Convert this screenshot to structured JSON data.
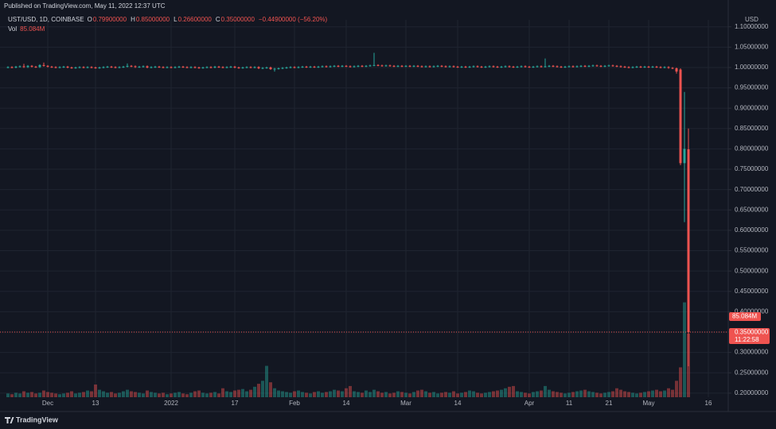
{
  "chart_data": {
    "type": "candlestick",
    "header": "Published on TradingView.com, May 11, 2022 12:37 UTC",
    "legend": {
      "symbol": "UST/USD, 1D, COINBASE",
      "fields": [
        {
          "key": "O",
          "value": "0.79900000"
        },
        {
          "key": "H",
          "value": "0.85000000"
        },
        {
          "key": "L",
          "value": "0.26600000"
        },
        {
          "key": "C",
          "value": "0.35000000"
        }
      ],
      "change": "−0.44900000 (−56.20%)"
    },
    "currency": "USD",
    "footer": "TradingView",
    "last_price_label": "0.35000000",
    "countdown": "11:22:58",
    "up_color": "#26a69a",
    "down_color": "#ef5350",
    "grid": true,
    "x": [
      -10,
      -9,
      -8,
      -7,
      -6,
      -5,
      -4,
      -3,
      -2,
      -1,
      0,
      1,
      2,
      3,
      4,
      5,
      6,
      7,
      8,
      9,
      10,
      11,
      12,
      13,
      14,
      15,
      16,
      17,
      18,
      19,
      20,
      21,
      22,
      23,
      24,
      25,
      26,
      27,
      28,
      29,
      30,
      31,
      32,
      33,
      34,
      35,
      36,
      37,
      38,
      39,
      40,
      41,
      42,
      43,
      44,
      45,
      46,
      47,
      48,
      49,
      50,
      51,
      52,
      53,
      54,
      55,
      56,
      57,
      58,
      59,
      60,
      61,
      62,
      63,
      64,
      65,
      66,
      67,
      68,
      69,
      70,
      71,
      72,
      73,
      74,
      75,
      76,
      77,
      78,
      79,
      80,
      81,
      82,
      83,
      84,
      85,
      86,
      87,
      88,
      89,
      90,
      91,
      92,
      93,
      94,
      95,
      96,
      97,
      98,
      99,
      100,
      101,
      102,
      103,
      104,
      105,
      106,
      107,
      108,
      109,
      110,
      111,
      112,
      113,
      114,
      115,
      116,
      117,
      118,
      119,
      120,
      121,
      122,
      123,
      124,
      125,
      126,
      127,
      128,
      129,
      130,
      131,
      132,
      133,
      134,
      135,
      136,
      137,
      138,
      139,
      140,
      141,
      142,
      143,
      144,
      145,
      146,
      147,
      148,
      149,
      150,
      151,
      152,
      153,
      154,
      155,
      156,
      157,
      158,
      159,
      160,
      161
    ],
    "open": [
      1.0,
      1.001,
      1.0,
      1.002,
      1.003,
      1.001,
      1.004,
      1.002,
      1.001,
      1.006,
      1.004,
      1.002,
      1.001,
      1.0,
      1.001,
      1.002,
      1.0,
      0.999,
      1.0,
      1.001,
      1.0,
      1.001,
      1.0,
      0.999,
      1.0,
      1.001,
      1.002,
      1.001,
      1.0,
      1.001,
      1.002,
      1.004,
      1.003,
      1.001,
      1.002,
      1.003,
      1.0,
      1.001,
      1.002,
      1.001,
      1.0,
      1.001,
      1.0,
      1.001,
      1.002,
      1.001,
      1.0,
      1.001,
      1.0,
      0.999,
      1.0,
      1.001,
      1.0,
      1.002,
      1.001,
      1.0,
      1.001,
      1.002,
      1.0,
      0.999,
      1.0,
      1.001,
      1.0,
      1.001,
      0.998,
      0.999,
      1.0,
      0.996,
      0.997,
      0.998,
      0.999,
      1.0,
      1.001,
      1.0,
      1.001,
      1.002,
      1.001,
      1.002,
      1.001,
      1.002,
      1.003,
      1.002,
      1.003,
      1.004,
      1.003,
      1.004,
      1.003,
      1.002,
      1.003,
      1.004,
      1.003,
      1.004,
      1.005,
      1.006,
      1.005,
      1.004,
      1.005,
      1.004,
      1.003,
      1.004,
      1.003,
      1.004,
      1.003,
      1.004,
      1.003,
      1.002,
      1.003,
      1.002,
      1.003,
      1.004,
      1.003,
      1.002,
      1.003,
      1.002,
      1.001,
      1.002,
      1.001,
      1.002,
      1.003,
      1.002,
      1.001,
      1.002,
      1.003,
      1.002,
      1.001,
      1.002,
      1.003,
      1.002,
      1.001,
      1.002,
      1.003,
      1.002,
      1.001,
      1.002,
      1.003,
      1.002,
      1.003,
      1.004,
      1.003,
      1.002,
      1.001,
      1.002,
      1.003,
      1.002,
      1.003,
      1.004,
      1.003,
      1.004,
      1.005,
      1.004,
      1.003,
      1.004,
      1.005,
      1.004,
      1.003,
      1.002,
      1.001,
      1.0,
      1.001,
      1.002,
      1.001,
      1.002,
      1.001,
      1.002,
      1.001,
      1.0,
      1.001,
      0.999,
      0.998,
      0.995,
      0.765,
      0.799
    ],
    "high": [
      1.003,
      1.003,
      1.004,
      1.005,
      1.009,
      1.006,
      1.006,
      1.004,
      1.008,
      1.012,
      1.006,
      1.004,
      1.003,
      1.003,
      1.004,
      1.004,
      1.002,
      1.002,
      1.003,
      1.003,
      1.003,
      1.003,
      1.002,
      1.002,
      1.003,
      1.004,
      1.004,
      1.003,
      1.003,
      1.004,
      1.01,
      1.006,
      1.005,
      1.004,
      1.005,
      1.005,
      1.003,
      1.004,
      1.004,
      1.003,
      1.003,
      1.003,
      1.003,
      1.004,
      1.004,
      1.003,
      1.003,
      1.003,
      1.002,
      1.002,
      1.003,
      1.003,
      1.004,
      1.004,
      1.003,
      1.003,
      1.004,
      1.004,
      1.002,
      1.002,
      1.003,
      1.003,
      1.003,
      1.003,
      1.001,
      1.002,
      1.002,
      0.999,
      1.0,
      1.001,
      1.002,
      1.003,
      1.003,
      1.003,
      1.004,
      1.004,
      1.004,
      1.004,
      1.004,
      1.005,
      1.005,
      1.005,
      1.006,
      1.006,
      1.006,
      1.006,
      1.005,
      1.005,
      1.006,
      1.006,
      1.006,
      1.007,
      1.036,
      1.008,
      1.007,
      1.007,
      1.007,
      1.006,
      1.006,
      1.006,
      1.006,
      1.006,
      1.006,
      1.006,
      1.005,
      1.005,
      1.005,
      1.005,
      1.006,
      1.006,
      1.005,
      1.005,
      1.005,
      1.004,
      1.004,
      1.004,
      1.004,
      1.005,
      1.005,
      1.004,
      1.004,
      1.005,
      1.005,
      1.004,
      1.004,
      1.005,
      1.005,
      1.004,
      1.004,
      1.005,
      1.005,
      1.004,
      1.004,
      1.005,
      1.005,
      1.022,
      1.006,
      1.006,
      1.005,
      1.004,
      1.004,
      1.005,
      1.005,
      1.005,
      1.006,
      1.006,
      1.006,
      1.007,
      1.007,
      1.006,
      1.006,
      1.007,
      1.007,
      1.006,
      1.005,
      1.004,
      1.003,
      1.003,
      1.004,
      1.004,
      1.004,
      1.004,
      1.004,
      1.004,
      1.003,
      1.003,
      1.003,
      1.001,
      1.0,
      0.998,
      0.94,
      0.85
    ],
    "low": [
      0.998,
      0.998,
      0.998,
      1.0,
      0.999,
      0.999,
      1.0,
      0.999,
      0.999,
      1.002,
      1.0,
      0.999,
      0.998,
      0.998,
      0.999,
      0.998,
      0.997,
      0.997,
      0.998,
      0.998,
      0.998,
      0.998,
      0.997,
      0.997,
      0.998,
      0.999,
      0.999,
      0.998,
      0.998,
      0.999,
      1.0,
      1.001,
      0.999,
      0.999,
      1.0,
      0.998,
      0.998,
      0.999,
      0.999,
      0.998,
      0.998,
      0.998,
      0.998,
      0.999,
      0.999,
      0.998,
      0.998,
      0.998,
      0.997,
      0.997,
      0.998,
      0.998,
      0.998,
      0.999,
      0.998,
      0.998,
      0.999,
      0.998,
      0.997,
      0.997,
      0.998,
      0.998,
      0.998,
      0.996,
      0.996,
      0.997,
      0.994,
      0.99,
      0.995,
      0.996,
      0.997,
      0.998,
      0.998,
      0.998,
      0.999,
      0.999,
      0.999,
      0.999,
      0.999,
      1.0,
      1.0,
      1.0,
      1.001,
      1.001,
      1.001,
      1.001,
      1.0,
      1.0,
      1.001,
      1.001,
      1.001,
      1.002,
      1.003,
      1.003,
      1.002,
      1.002,
      1.002,
      1.001,
      1.001,
      1.001,
      1.001,
      1.001,
      1.001,
      1.001,
      1.0,
      1.0,
      1.0,
      1.0,
      1.001,
      1.001,
      1.0,
      1.0,
      1.0,
      0.999,
      0.999,
      0.999,
      0.999,
      1.0,
      1.0,
      0.999,
      0.999,
      1.0,
      1.0,
      0.999,
      0.999,
      1.0,
      1.0,
      0.999,
      0.999,
      1.0,
      1.0,
      0.999,
      0.999,
      1.0,
      1.0,
      1.0,
      1.001,
      1.001,
      1.0,
      0.999,
      0.999,
      1.0,
      1.0,
      1.0,
      1.001,
      1.001,
      1.001,
      1.002,
      1.002,
      1.001,
      1.001,
      1.002,
      1.002,
      1.001,
      1.0,
      0.999,
      0.998,
      0.998,
      0.999,
      0.999,
      0.999,
      0.999,
      0.999,
      0.999,
      0.998,
      0.998,
      0.997,
      0.996,
      0.985,
      0.76,
      0.62,
      0.266
    ],
    "close": [
      1.001,
      1.0,
      1.002,
      1.003,
      1.001,
      1.004,
      1.002,
      1.001,
      1.006,
      1.004,
      1.002,
      1.001,
      1.0,
      1.001,
      1.002,
      1.0,
      0.999,
      1.0,
      1.001,
      1.0,
      1.001,
      1.0,
      0.999,
      1.0,
      1.001,
      1.002,
      1.001,
      1.0,
      1.001,
      1.002,
      1.004,
      1.003,
      1.001,
      1.002,
      1.003,
      1.0,
      1.001,
      1.002,
      1.001,
      1.0,
      1.001,
      1.0,
      1.001,
      1.002,
      1.001,
      1.0,
      1.001,
      1.0,
      0.999,
      1.0,
      1.001,
      1.0,
      1.002,
      1.001,
      1.0,
      1.001,
      1.002,
      1.0,
      0.999,
      1.0,
      1.001,
      1.0,
      1.001,
      0.998,
      0.999,
      1.0,
      0.996,
      0.997,
      0.998,
      0.999,
      1.0,
      1.001,
      1.0,
      1.001,
      1.002,
      1.001,
      1.002,
      1.001,
      1.002,
      1.003,
      1.002,
      1.003,
      1.004,
      1.003,
      1.004,
      1.003,
      1.002,
      1.003,
      1.004,
      1.003,
      1.004,
      1.005,
      1.006,
      1.005,
      1.004,
      1.005,
      1.004,
      1.003,
      1.004,
      1.003,
      1.004,
      1.003,
      1.004,
      1.003,
      1.002,
      1.003,
      1.002,
      1.003,
      1.004,
      1.003,
      1.002,
      1.003,
      1.002,
      1.001,
      1.002,
      1.001,
      1.002,
      1.003,
      1.002,
      1.001,
      1.002,
      1.003,
      1.002,
      1.001,
      1.002,
      1.003,
      1.002,
      1.001,
      1.002,
      1.003,
      1.002,
      1.001,
      1.002,
      1.003,
      1.002,
      1.003,
      1.004,
      1.003,
      1.002,
      1.001,
      1.002,
      1.003,
      1.002,
      1.003,
      1.004,
      1.003,
      1.004,
      1.005,
      1.004,
      1.003,
      1.004,
      1.005,
      1.004,
      1.003,
      1.002,
      1.001,
      1.0,
      1.001,
      1.002,
      1.001,
      1.002,
      1.001,
      1.002,
      1.001,
      1.0,
      1.001,
      0.999,
      0.998,
      0.99,
      0.765,
      0.8,
      0.35
    ],
    "volume": {
      "name": "Vol",
      "last_label": "85.084M",
      "values": [
        5,
        4,
        6,
        5,
        8,
        6,
        7,
        5,
        6,
        9,
        7,
        6,
        5,
        4,
        5,
        6,
        8,
        5,
        6,
        7,
        9,
        8,
        17,
        10,
        8,
        6,
        7,
        5,
        6,
        8,
        10,
        8,
        7,
        6,
        5,
        9,
        7,
        6,
        5,
        6,
        4,
        5,
        6,
        7,
        5,
        4,
        6,
        8,
        9,
        6,
        5,
        6,
        7,
        5,
        12,
        8,
        7,
        9,
        10,
        11,
        8,
        10,
        14,
        18,
        22,
        42,
        20,
        12,
        9,
        8,
        7,
        6,
        8,
        9,
        7,
        6,
        5,
        7,
        8,
        6,
        7,
        8,
        10,
        9,
        8,
        12,
        15,
        8,
        7,
        6,
        9,
        7,
        10,
        8,
        6,
        7,
        5,
        6,
        8,
        7,
        6,
        5,
        7,
        9,
        10,
        8,
        6,
        7,
        5,
        6,
        7,
        6,
        8,
        5,
        6,
        7,
        9,
        8,
        6,
        5,
        6,
        7,
        8,
        9,
        10,
        12,
        14,
        15,
        8,
        7,
        6,
        5,
        7,
        8,
        9,
        15,
        10,
        8,
        7,
        6,
        5,
        6,
        7,
        8,
        9,
        10,
        8,
        7,
        6,
        5,
        6,
        7,
        8,
        12,
        10,
        8,
        7,
        6,
        5,
        6,
        7,
        8,
        9,
        10,
        8,
        9,
        12,
        10,
        22,
        40,
        127,
        85.084
      ]
    },
    "volume_ylim": [
      0,
      500
    ],
    "xlim": [
      -12,
      171
    ],
    "xticks": [
      {
        "value": 0,
        "label": "Dec"
      },
      {
        "value": 12,
        "label": "13"
      },
      {
        "value": 31,
        "label": "2022"
      },
      {
        "value": 47,
        "label": "17"
      },
      {
        "value": 62,
        "label": "Feb"
      },
      {
        "value": 75,
        "label": "14"
      },
      {
        "value": 90,
        "label": "Mar"
      },
      {
        "value": 103,
        "label": "14"
      },
      {
        "value": 121,
        "label": "Apr"
      },
      {
        "value": 131,
        "label": "11"
      },
      {
        "value": 141,
        "label": "21"
      },
      {
        "value": 151,
        "label": "May"
      },
      {
        "value": 166,
        "label": "16"
      }
    ],
    "ylim": [
      0.19,
      1.117
    ],
    "yticks": [
      {
        "value": 0.2,
        "label": "0.20000000"
      },
      {
        "value": 0.25,
        "label": "0.25000000"
      },
      {
        "value": 0.3,
        "label": "0.30000000"
      },
      {
        "value": 0.35,
        "label": "0.35000000"
      },
      {
        "value": 0.4,
        "label": "0.40000000"
      },
      {
        "value": 0.45,
        "label": "0.45000000"
      },
      {
        "value": 0.5,
        "label": "0.50000000"
      },
      {
        "value": 0.55,
        "label": "0.55000000"
      },
      {
        "value": 0.6,
        "label": "0.60000000"
      },
      {
        "value": 0.65,
        "label": "0.65000000"
      },
      {
        "value": 0.7,
        "label": "0.70000000"
      },
      {
        "value": 0.75,
        "label": "0.75000000"
      },
      {
        "value": 0.8,
        "label": "0.80000000"
      },
      {
        "value": 0.85,
        "label": "0.85000000"
      },
      {
        "value": 0.9,
        "label": "0.90000000"
      },
      {
        "value": 0.95,
        "label": "0.95000000"
      },
      {
        "value": 1.0,
        "label": "1.00000000"
      },
      {
        "value": 1.05,
        "label": "1.05000000"
      },
      {
        "value": 1.1,
        "label": "1.10000000"
      }
    ]
  }
}
